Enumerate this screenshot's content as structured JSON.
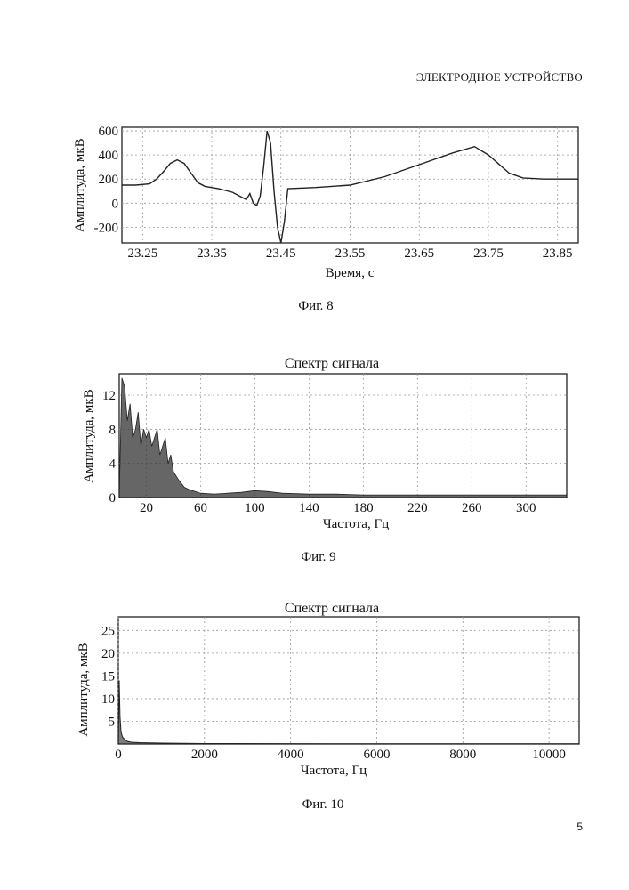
{
  "header": {
    "title": "ЭЛЕКТРОДНОЕ УСТРОЙСТВО"
  },
  "page_number": "5",
  "figures": [
    {
      "caption": "Фиг. 8"
    },
    {
      "caption": "Фиг. 9"
    },
    {
      "caption": "Фиг. 10"
    }
  ],
  "chart_data": [
    {
      "type": "line",
      "title": "",
      "xlabel": "Время, с",
      "ylabel": "Амплитуда, мкВ",
      "xlim": [
        23.22,
        23.88
      ],
      "ylim": [
        -330,
        630
      ],
      "xticks": [
        "23.25",
        "23.35",
        "23.45",
        "23.55",
        "23.65",
        "23.75",
        "23.85"
      ],
      "xtick_values": [
        23.25,
        23.35,
        23.45,
        23.55,
        23.65,
        23.75,
        23.85
      ],
      "yticks": [
        "600",
        "400",
        "200",
        "0",
        "-200"
      ],
      "ytick_values": [
        600,
        400,
        200,
        0,
        -200
      ],
      "grid": true,
      "x": [
        23.22,
        23.24,
        23.26,
        23.27,
        23.28,
        23.29,
        23.3,
        23.31,
        23.32,
        23.33,
        23.34,
        23.36,
        23.38,
        23.39,
        23.4,
        23.405,
        23.41,
        23.415,
        23.42,
        23.425,
        23.43,
        23.435,
        23.44,
        23.445,
        23.45,
        23.455,
        23.46,
        23.5,
        23.55,
        23.6,
        23.65,
        23.7,
        23.73,
        23.75,
        23.78,
        23.8,
        23.83,
        23.88
      ],
      "values": [
        150,
        150,
        160,
        200,
        260,
        330,
        360,
        330,
        250,
        170,
        140,
        120,
        90,
        60,
        30,
        80,
        0,
        -20,
        60,
        300,
        600,
        500,
        100,
        -200,
        -330,
        -150,
        120,
        130,
        150,
        220,
        320,
        420,
        470,
        400,
        250,
        210,
        200,
        200
      ]
    },
    {
      "type": "line",
      "title": "Спектр сигнала",
      "xlabel": "Частота, Гц",
      "ylabel": "Амплитуда, мкВ",
      "xlim": [
        0,
        330
      ],
      "ylim": [
        0,
        14.5
      ],
      "xticks": [
        "20",
        "60",
        "100",
        "140",
        "180",
        "220",
        "260",
        "300"
      ],
      "xtick_values": [
        20,
        60,
        100,
        140,
        180,
        220,
        260,
        300
      ],
      "yticks": [
        "12",
        "8",
        "4",
        "0"
      ],
      "ytick_values": [
        12,
        8,
        4,
        0
      ],
      "grid": true,
      "x": [
        0,
        2,
        4,
        6,
        8,
        10,
        12,
        14,
        16,
        18,
        20,
        22,
        24,
        26,
        28,
        30,
        32,
        34,
        36,
        38,
        40,
        44,
        48,
        52,
        56,
        60,
        70,
        80,
        90,
        100,
        110,
        120,
        140,
        160,
        180,
        200,
        240,
        280,
        330
      ],
      "values": [
        0,
        14,
        13,
        9,
        11,
        7,
        8,
        10,
        6,
        8,
        7,
        8,
        6,
        7,
        8,
        5,
        6,
        7,
        4,
        5,
        3,
        2,
        1.2,
        0.9,
        0.7,
        0.5,
        0.4,
        0.5,
        0.6,
        0.8,
        0.7,
        0.5,
        0.4,
        0.4,
        0.3,
        0.3,
        0.3,
        0.3,
        0.3
      ]
    },
    {
      "type": "line",
      "title": "Спектр сигнала",
      "xlabel": "Частота, Гц",
      "ylabel": "Амплитуда, мкВ",
      "xlim": [
        0,
        10700
      ],
      "ylim": [
        0,
        28
      ],
      "xticks": [
        "0",
        "2000",
        "4000",
        "6000",
        "8000",
        "10000"
      ],
      "xtick_values": [
        0,
        2000,
        4000,
        6000,
        8000,
        10000
      ],
      "yticks": [
        "25",
        "20",
        "15",
        "10",
        "5"
      ],
      "ytick_values": [
        25,
        20,
        15,
        10,
        5
      ],
      "grid": true,
      "x": [
        0,
        20,
        40,
        60,
        80,
        100,
        150,
        200,
        300,
        500,
        1000,
        2000,
        5000,
        10700
      ],
      "values": [
        0,
        14,
        6,
        3,
        2,
        1.5,
        1,
        0.6,
        0.4,
        0.3,
        0.2,
        0.1,
        0.05,
        0.05
      ]
    }
  ]
}
